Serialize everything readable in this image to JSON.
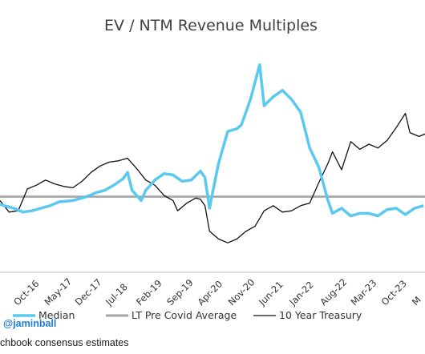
{
  "chart_data": {
    "type": "line",
    "title": "EV / NTM Revenue Multiples",
    "x_ticks": [
      "Oct-16",
      "May-17",
      "Dec-17",
      "Jul-18",
      "Feb-19",
      "Sep-19",
      "Apr-20",
      "Nov-20",
      "Jun-21",
      "Jan-22",
      "Aug-22",
      "Mar-23",
      "Oct-23",
      "M"
    ],
    "x_range": [
      "2016-05",
      "2024-03"
    ],
    "y_axis_visible": false,
    "grid": false,
    "legend": "bottom",
    "series": [
      {
        "name": "Median",
        "color": "#5bc8ef",
        "points": [
          [
            "2016-05",
            5.3
          ],
          [
            "2016-08",
            5.0
          ],
          [
            "2016-10",
            4.7
          ],
          [
            "2016-12",
            4.8
          ],
          [
            "2017-02",
            5.0
          ],
          [
            "2017-04",
            5.2
          ],
          [
            "2017-06",
            5.5
          ],
          [
            "2017-09",
            5.6
          ],
          [
            "2017-12",
            5.9
          ],
          [
            "2018-02",
            6.2
          ],
          [
            "2018-04",
            6.4
          ],
          [
            "2018-06",
            6.8
          ],
          [
            "2018-08",
            7.3
          ],
          [
            "2018-09",
            7.8
          ],
          [
            "2018-10",
            6.4
          ],
          [
            "2018-12",
            5.6
          ],
          [
            "2019-01",
            6.4
          ],
          [
            "2019-03",
            7.2
          ],
          [
            "2019-05",
            7.7
          ],
          [
            "2019-07",
            7.6
          ],
          [
            "2019-09",
            7.1
          ],
          [
            "2019-11",
            7.2
          ],
          [
            "2020-01",
            7.9
          ],
          [
            "2020-02",
            7.4
          ],
          [
            "2020-03",
            5.0
          ],
          [
            "2020-04",
            6.8
          ],
          [
            "2020-05",
            8.5
          ],
          [
            "2020-07",
            11.0
          ],
          [
            "2020-09",
            11.2
          ],
          [
            "2020-10",
            11.5
          ],
          [
            "2020-12",
            13.5
          ],
          [
            "2021-02",
            16.2
          ],
          [
            "2021-03",
            13.0
          ],
          [
            "2021-05",
            13.7
          ],
          [
            "2021-07",
            14.2
          ],
          [
            "2021-09",
            13.5
          ],
          [
            "2021-11",
            12.5
          ],
          [
            "2022-01",
            9.7
          ],
          [
            "2022-03",
            8.2
          ],
          [
            "2022-05",
            5.6
          ],
          [
            "2022-06",
            4.6
          ],
          [
            "2022-08",
            5.0
          ],
          [
            "2022-10",
            4.4
          ],
          [
            "2022-12",
            4.6
          ],
          [
            "2023-02",
            4.6
          ],
          [
            "2023-04",
            4.4
          ],
          [
            "2023-06",
            4.9
          ],
          [
            "2023-08",
            5.0
          ],
          [
            "2023-10",
            4.5
          ],
          [
            "2023-12",
            5.0
          ],
          [
            "2024-02",
            5.2
          ]
        ]
      },
      {
        "name": "LT Pre Covid Average",
        "color": "#a6a6a6",
        "points": [
          [
            "2016-05",
            5.9
          ],
          [
            "2024-03",
            5.9
          ]
        ]
      },
      {
        "name": "10 Year Treasury",
        "color": "#111111",
        "points": [
          [
            "2016-05",
            5.6
          ],
          [
            "2016-07",
            4.7
          ],
          [
            "2016-09",
            4.8
          ],
          [
            "2016-11",
            6.5
          ],
          [
            "2017-01",
            6.8
          ],
          [
            "2017-03",
            7.2
          ],
          [
            "2017-05",
            6.9
          ],
          [
            "2017-07",
            6.7
          ],
          [
            "2017-09",
            6.6
          ],
          [
            "2017-11",
            7.1
          ],
          [
            "2018-01",
            7.8
          ],
          [
            "2018-03",
            8.3
          ],
          [
            "2018-05",
            8.6
          ],
          [
            "2018-07",
            8.7
          ],
          [
            "2018-09",
            8.9
          ],
          [
            "2018-11",
            8.1
          ],
          [
            "2019-01",
            7.2
          ],
          [
            "2019-03",
            6.8
          ],
          [
            "2019-05",
            6.0
          ],
          [
            "2019-07",
            5.6
          ],
          [
            "2019-08",
            4.8
          ],
          [
            "2019-10",
            5.4
          ],
          [
            "2019-12",
            5.8
          ],
          [
            "2020-01",
            5.7
          ],
          [
            "2020-02",
            5.2
          ],
          [
            "2020-03",
            3.2
          ],
          [
            "2020-05",
            2.6
          ],
          [
            "2020-07",
            2.3
          ],
          [
            "2020-09",
            2.6
          ],
          [
            "2020-11",
            3.2
          ],
          [
            "2021-01",
            3.6
          ],
          [
            "2021-03",
            4.8
          ],
          [
            "2021-05",
            5.2
          ],
          [
            "2021-07",
            4.7
          ],
          [
            "2021-09",
            4.8
          ],
          [
            "2021-11",
            5.2
          ],
          [
            "2022-01",
            5.4
          ],
          [
            "2022-03",
            7.0
          ],
          [
            "2022-05",
            8.5
          ],
          [
            "2022-06",
            9.4
          ],
          [
            "2022-08",
            8.0
          ],
          [
            "2022-10",
            10.2
          ],
          [
            "2022-12",
            9.6
          ],
          [
            "2023-02",
            10.0
          ],
          [
            "2023-04",
            9.7
          ],
          [
            "2023-06",
            10.3
          ],
          [
            "2023-08",
            11.3
          ],
          [
            "2023-10",
            12.4
          ],
          [
            "2023-11",
            10.9
          ],
          [
            "2024-01",
            10.6
          ],
          [
            "2024-03",
            10.9
          ]
        ]
      }
    ]
  },
  "footer": {
    "handle": "@jaminball",
    "source": "chbook consensus estimates"
  }
}
